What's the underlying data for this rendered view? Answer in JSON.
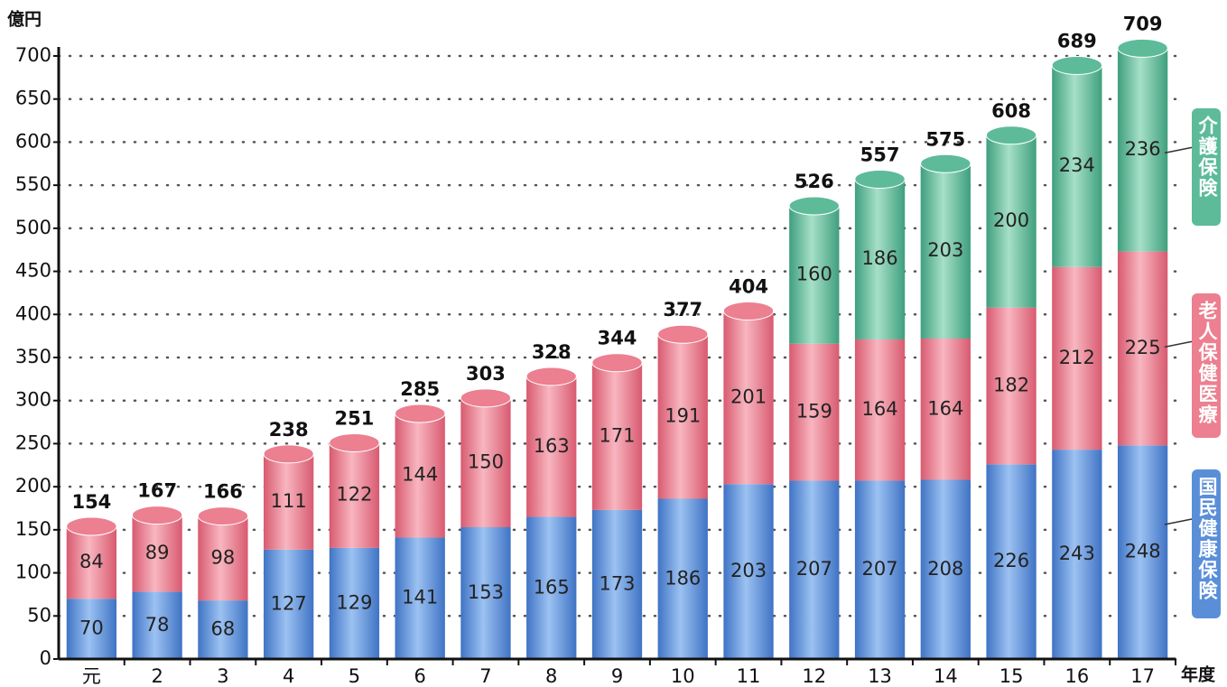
{
  "chart_data": {
    "type": "stacked_bar",
    "y_label": "億円",
    "x_label": "年度",
    "categories": [
      "元",
      "2",
      "3",
      "4",
      "5",
      "6",
      "7",
      "8",
      "9",
      "10",
      "11",
      "12",
      "13",
      "14",
      "15",
      "16",
      "17"
    ],
    "series": [
      {
        "name": "国民健康保険",
        "color": "#5a8fd8",
        "values": [
          70,
          78,
          68,
          127,
          129,
          141,
          153,
          165,
          173,
          186,
          203,
          207,
          207,
          208,
          226,
          243,
          248
        ]
      },
      {
        "name": "老人保健医療",
        "color": "#ec7f90",
        "values": [
          84,
          89,
          98,
          111,
          122,
          144,
          150,
          163,
          171,
          191,
          201,
          159,
          164,
          164,
          182,
          212,
          225
        ]
      },
      {
        "name": "介護保険",
        "color": "#5dbb9a",
        "values": [
          null,
          null,
          null,
          null,
          null,
          null,
          null,
          null,
          null,
          null,
          null,
          160,
          186,
          203,
          200,
          234,
          236
        ]
      }
    ],
    "totals": [
      154,
      167,
      166,
      238,
      251,
      285,
      303,
      328,
      344,
      377,
      404,
      526,
      557,
      575,
      608,
      689,
      709
    ],
    "ylim": [
      0,
      700
    ],
    "yticks": [
      0,
      50,
      100,
      150,
      200,
      250,
      300,
      350,
      400,
      450,
      500,
      550,
      600,
      650,
      700
    ],
    "grid": true
  }
}
